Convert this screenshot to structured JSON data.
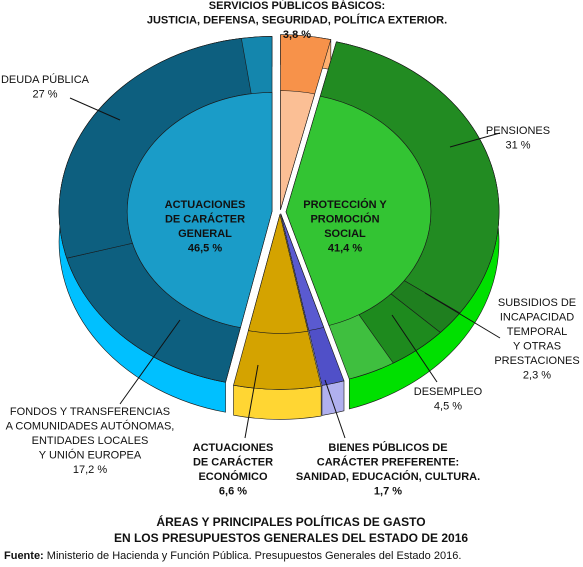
{
  "chart_data": {
    "type": "pie",
    "title": [
      "ÁREAS Y PRINCIPALES POLÍTICAS DE GASTO",
      "EN LOS PRESUPUESTOS GENERALES DEL ESTADO DE 2016"
    ],
    "source_label": "Fuente:",
    "source": "Ministerio de Hacienda y Función Pública. Presupuestos Generales del Estado 2016.",
    "groups": [
      {
        "label_lines": [
          "SERVICIOS PÚBLICOS BÁSICOS:",
          "JUSTICIA, DEFENSA, SEGURIDAD, POLÍTICA EXTERIOR."
        ],
        "value": 3.8,
        "value_label": "3,8 %",
        "color": "#f7924a",
        "light": "#fbbf95",
        "side": "#ffb070",
        "children": []
      },
      {
        "label_lines": [
          "PROTECCIÓN Y",
          "PROMOCIÓN",
          "SOCIAL"
        ],
        "value": 41.4,
        "value_label": "41,4 %",
        "color": "#3fbf3f",
        "light": "#33c433",
        "side": "#00e000",
        "children": [
          {
            "label_lines": [
              "PENSIONES"
            ],
            "value": 31,
            "value_label": "31 %",
            "color": "#228b22"
          },
          {
            "label_lines": [
              "SUBSIDIOS DE",
              "INCAPACIDAD",
              "TEMPORAL",
              "Y OTRAS",
              "PRESTACIONES"
            ],
            "value": 2.3,
            "value_label": "2,3 %",
            "color": "#1f7f1f"
          },
          {
            "label_lines": [
              "DESEMPLEO"
            ],
            "value": 4.5,
            "value_label": "4,5 %",
            "color": "#1e8a1e"
          }
        ]
      },
      {
        "label_lines": [
          "BIENES PÚBLICOS DE",
          "CARÁCTER PREFERENTE:",
          "SANIDAD, EDUCACIÓN, CULTURA."
        ],
        "value": 1.7,
        "value_label": "1,7 %",
        "color": "#5050c8",
        "light": "#5a5ad0",
        "side": "#b0b0ee",
        "children": []
      },
      {
        "label_lines": [
          "ACTUACIONES",
          "DE CARÁCTER",
          "ECONÓMICO"
        ],
        "value": 6.6,
        "value_label": "6,6 %",
        "color": "#d4a300",
        "light": "#d4a300",
        "side": "#ffd633",
        "children": []
      },
      {
        "label_lines": [
          "ACTUACIONES",
          "DE CARÁCTER",
          "GENERAL"
        ],
        "value": 46.5,
        "value_label": "46,5 %",
        "color": "#1486ad",
        "light": "#1a9cc8",
        "side": "#00c0ff",
        "children": [
          {
            "label_lines": [
              "FONDOS Y TRANSFERENCIAS",
              "A COMUNIDADES AUTÓNOMAS,",
              "ENTIDADES LOCALES",
              "Y UNIÓN EUROPEA"
            ],
            "value": 17.2,
            "value_label": "17,2 %",
            "color": "#0d5f7f"
          },
          {
            "label_lines": [
              "DEUDA PÚBLICA"
            ],
            "value": 27,
            "value_label": "27 %",
            "color": "#0d5f7f"
          }
        ]
      }
    ]
  }
}
